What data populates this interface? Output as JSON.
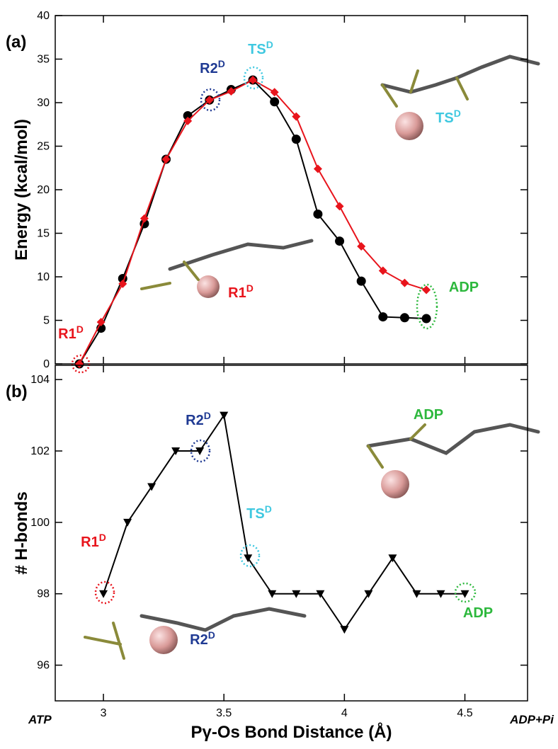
{
  "chart_data": [
    {
      "type": "line",
      "panel_label": "(a)",
      "y_label": "Energy (kcal/mol)",
      "x": [
        2.9,
        2.99,
        3.08,
        3.17,
        3.26,
        3.35,
        3.44,
        3.53,
        3.62,
        3.71,
        3.8,
        3.89,
        3.98,
        4.07,
        4.16,
        4.25,
        4.34
      ],
      "xlim": [
        2.8,
        4.76
      ],
      "xticks": [
        3,
        3.5,
        4,
        4.5
      ],
      "ylim": [
        0,
        40
      ],
      "yticks": [
        0,
        5,
        10,
        15,
        20,
        25,
        30,
        35,
        40
      ],
      "series": [
        {
          "color": "#000000",
          "marker": "circle",
          "values": [
            0,
            4.1,
            9.8,
            16.1,
            23.5,
            28.5,
            30.3,
            31.5,
            32.6,
            30.1,
            25.8,
            17.2,
            14.1,
            9.5,
            5.4,
            5.3,
            5.2
          ]
        },
        {
          "color": "#e8141c",
          "marker": "diamond",
          "values": [
            0,
            4.8,
            9.2,
            16.7,
            23.5,
            27.9,
            30.3,
            31.3,
            32.6,
            31.2,
            28.4,
            22.4,
            18.1,
            13.5,
            10.7,
            9.3,
            8.5
          ]
        }
      ],
      "annotations": [
        {
          "text": "R1",
          "sup": "D",
          "color": "#e8141c"
        },
        {
          "text": "R2",
          "sup": "D",
          "color": "#1f3a93"
        },
        {
          "text": "TS",
          "sup": "D",
          "color": "#3fc8e0"
        },
        {
          "text": "ADP",
          "color": "#2db83d"
        },
        {
          "text": "TS",
          "sup": "D",
          "color": "#3fc8e0"
        },
        {
          "text": "R1",
          "sup": "D",
          "color": "#e8141c"
        }
      ]
    },
    {
      "type": "line",
      "panel_label": "(b)",
      "y_label": "# H-bonds",
      "x_label": "Pγ-Os Bond Distance (Å)",
      "x_end_labels": [
        "ATP",
        "ADP+Pi"
      ],
      "x": [
        3.0,
        3.1,
        3.2,
        3.3,
        3.4,
        3.5,
        3.6,
        3.7,
        3.8,
        3.9,
        4.0,
        4.1,
        4.2,
        4.3,
        4.4,
        4.5
      ],
      "xlim": [
        2.8,
        4.76
      ],
      "xticks": [
        3,
        3.5,
        4,
        4.5
      ],
      "ylim": [
        95,
        104.4
      ],
      "yticks": [
        96,
        98,
        100,
        102,
        104
      ],
      "series": [
        {
          "color": "#000000",
          "marker": "triangle-down",
          "values": [
            98,
            100,
            101,
            102,
            102,
            103,
            99,
            98,
            98,
            98,
            97,
            98,
            99,
            98,
            98,
            98
          ]
        }
      ],
      "annotations": [
        {
          "text": "R1",
          "sup": "D",
          "color": "#e8141c"
        },
        {
          "text": "R2",
          "sup": "D",
          "color": "#1f3a93"
        },
        {
          "text": "TS",
          "sup": "D",
          "color": "#3fc8e0"
        },
        {
          "text": "ADP",
          "color": "#2db83d"
        },
        {
          "text": "ADP",
          "color": "#2db83d"
        },
        {
          "text": "R2",
          "sup": "D",
          "color": "#1f3a93"
        }
      ]
    }
  ]
}
